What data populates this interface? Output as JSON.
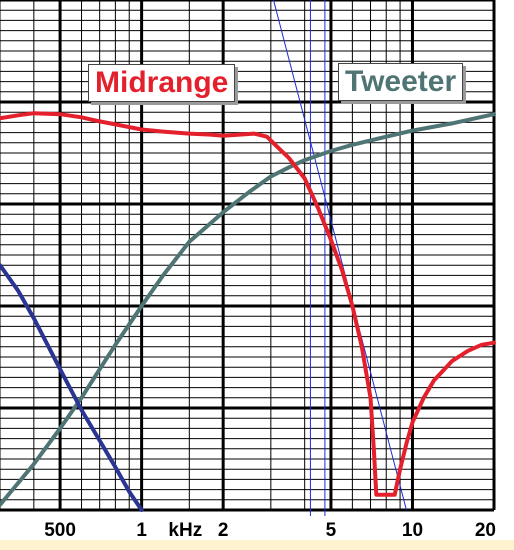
{
  "chart_data": {
    "type": "line",
    "x_scale": "log",
    "xlim": [
      300,
      20000
    ],
    "ylim": [
      0,
      5
    ],
    "grid": true,
    "tick_labels": [
      {
        "x": 500,
        "text": "500"
      },
      {
        "x": 1000,
        "text": "1"
      },
      {
        "x": 1450,
        "text": "kHz"
      },
      {
        "x": 2000,
        "text": "2"
      },
      {
        "x": 5000,
        "text": "5"
      },
      {
        "x": 10000,
        "text": "10"
      },
      {
        "x": 20000,
        "text": "20"
      }
    ],
    "series": [
      {
        "name": "Midrange",
        "color": "#e3202c",
        "points": [
          [
            300,
            3.84
          ],
          [
            350,
            3.87
          ],
          [
            400,
            3.89
          ],
          [
            500,
            3.88
          ],
          [
            600,
            3.85
          ],
          [
            700,
            3.81
          ],
          [
            800,
            3.78
          ],
          [
            1000,
            3.73
          ],
          [
            1200,
            3.71
          ],
          [
            1500,
            3.69
          ],
          [
            1800,
            3.68
          ],
          [
            2000,
            3.67
          ],
          [
            2300,
            3.68
          ],
          [
            2600,
            3.69
          ],
          [
            2900,
            3.66
          ],
          [
            3200,
            3.55
          ],
          [
            3500,
            3.45
          ],
          [
            4000,
            3.25
          ],
          [
            4500,
            2.95
          ],
          [
            5000,
            2.65
          ],
          [
            5500,
            2.35
          ],
          [
            6000,
            2.0
          ],
          [
            6500,
            1.6
          ],
          [
            7000,
            1.1
          ],
          [
            7200,
            0.6
          ],
          [
            7350,
            0.15
          ],
          [
            8000,
            0.15
          ],
          [
            8600,
            0.15
          ],
          [
            9000,
            0.4
          ],
          [
            9500,
            0.65
          ],
          [
            10000,
            0.86
          ],
          [
            11000,
            1.1
          ],
          [
            12000,
            1.27
          ],
          [
            14000,
            1.46
          ],
          [
            16000,
            1.56
          ],
          [
            18000,
            1.62
          ],
          [
            20000,
            1.64
          ]
        ]
      },
      {
        "name": "Tweeter",
        "color": "#4f7474",
        "points": [
          [
            300,
            0.05
          ],
          [
            400,
            0.45
          ],
          [
            500,
            0.8
          ],
          [
            600,
            1.1
          ],
          [
            700,
            1.38
          ],
          [
            800,
            1.62
          ],
          [
            1000,
            2.0
          ],
          [
            1200,
            2.3
          ],
          [
            1500,
            2.63
          ],
          [
            2000,
            2.92
          ],
          [
            2500,
            3.12
          ],
          [
            3000,
            3.27
          ],
          [
            3500,
            3.36
          ],
          [
            4000,
            3.43
          ],
          [
            5000,
            3.52
          ],
          [
            6000,
            3.58
          ],
          [
            8000,
            3.66
          ],
          [
            10000,
            3.72
          ],
          [
            14000,
            3.79
          ],
          [
            20000,
            3.88
          ]
        ]
      },
      {
        "name": "",
        "color": "#2a3593",
        "points": [
          [
            300,
            2.4
          ],
          [
            350,
            2.15
          ],
          [
            400,
            1.88
          ],
          [
            500,
            1.38
          ],
          [
            600,
            0.98
          ],
          [
            700,
            0.68
          ],
          [
            800,
            0.42
          ],
          [
            900,
            0.18
          ],
          [
            1000,
            0.0
          ]
        ]
      }
    ],
    "guides": [
      {
        "type": "vertical",
        "x": 4200,
        "color": "#1c2bd6"
      },
      {
        "type": "vertical",
        "x": 4750,
        "color": "#1c2bd6"
      },
      {
        "type": "slope",
        "from": [
          3000,
          5.1
        ],
        "to": [
          9500,
          0.0
        ],
        "color": "#1c2bd6"
      }
    ]
  },
  "legend": {
    "midrange": {
      "label": "Midrange",
      "color": "#e3202c"
    },
    "tweeter": {
      "label": "Tweeter",
      "color": "#4f7474"
    }
  }
}
